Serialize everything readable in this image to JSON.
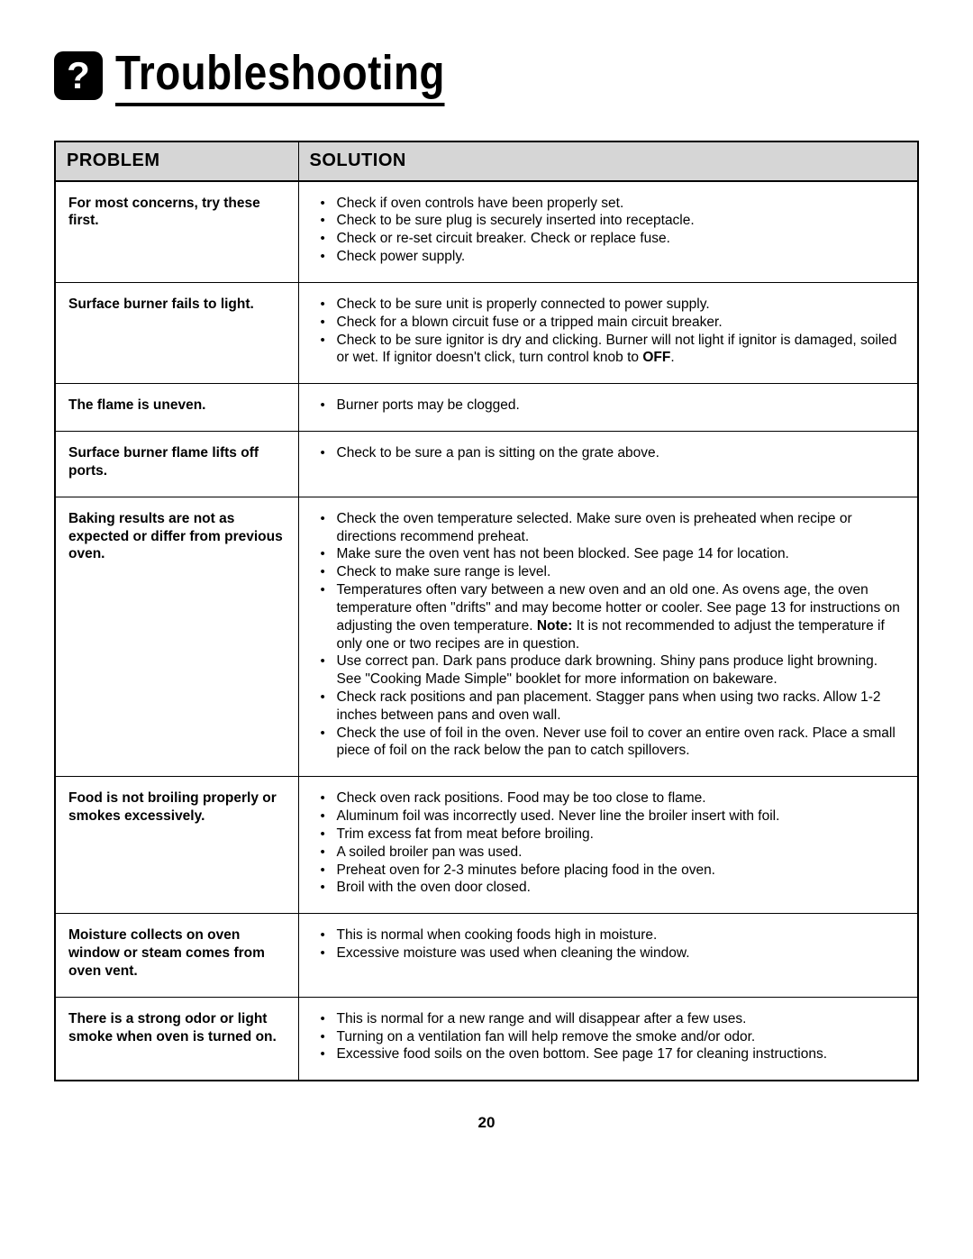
{
  "page": {
    "title": "Troubleshooting",
    "icon_glyph": "?",
    "page_number": "20"
  },
  "table": {
    "headers": {
      "problem": "PROBLEM",
      "solution": "SOLUTION"
    },
    "rows": [
      {
        "problem": "For most concerns, try these first.",
        "solutions": [
          "Check if oven controls have been properly set.",
          "Check to be sure plug is securely inserted into receptacle.",
          "Check or re-set circuit breaker.  Check or replace fuse.",
          "Check power supply."
        ]
      },
      {
        "problem": "Surface burner fails to light.",
        "solutions": [
          "Check to be sure unit is properly connected to power supply.",
          "Check for a blown circuit fuse or a tripped main circuit breaker.",
          "Check to be sure ignitor is dry and clicking. Burner will not light if ignitor is damaged, soiled or wet. If ignitor doesn't click, turn control knob to <b>OFF</b>."
        ]
      },
      {
        "problem": "The flame is uneven.",
        "solutions": [
          "Burner ports may be clogged."
        ]
      },
      {
        "problem": "Surface burner flame lifts off ports.",
        "solutions": [
          "Check to be sure a pan is sitting on the grate above."
        ]
      },
      {
        "problem": "Baking results are not as expected or differ from previous oven.",
        "solutions": [
          "Check the oven temperature selected. Make sure oven is preheated when recipe or directions recommend preheat.",
          "Make sure the oven vent has not been blocked.  See page 14 for location.",
          "Check to make sure range is level.",
          "Temperatures often vary between a new oven and an old one. As ovens age, the oven temperature often \"drifts\" and may become hotter or cooler. See page 13 for instructions on adjusting the oven temperature.  <b>Note:</b>  It is not recommended to adjust the temperature if only one or two recipes are in question.",
          "Use correct pan. Dark pans produce dark browning. Shiny pans produce light browning. See \"Cooking Made Simple\" booklet for more information on bakeware.",
          "Check rack positions and pan placement. Stagger pans when using two racks. Allow 1-2 inches between pans and oven wall.",
          "Check the use of foil in the oven. Never use foil to cover an entire oven rack. Place a small piece of foil on the rack below the pan to catch spillovers."
        ]
      },
      {
        "problem": "Food is not broiling properly or smokes excessively.",
        "solutions": [
          "Check oven rack positions. Food may be too close to flame.",
          "Aluminum foil was incorrectly used. Never line the broiler insert with foil.",
          "Trim excess fat from meat before broiling.",
          "A soiled broiler pan was used.",
          "Preheat oven for 2-3 minutes before placing food in the oven.",
          "Broil with the oven door closed."
        ]
      },
      {
        "problem": "Moisture collects on oven window or steam comes from oven vent.",
        "solutions": [
          "This is normal when cooking foods high in moisture.",
          "Excessive moisture was used when cleaning the window."
        ]
      },
      {
        "problem": "There is a strong odor or light smoke when oven is turned on.",
        "solutions": [
          "This is normal for a new range and will disappear after a few uses.",
          "Turning on a ventilation fan will help remove the smoke and/or odor.",
          "Excessive food soils on the oven bottom.  See page 17 for cleaning instructions."
        ]
      }
    ]
  }
}
